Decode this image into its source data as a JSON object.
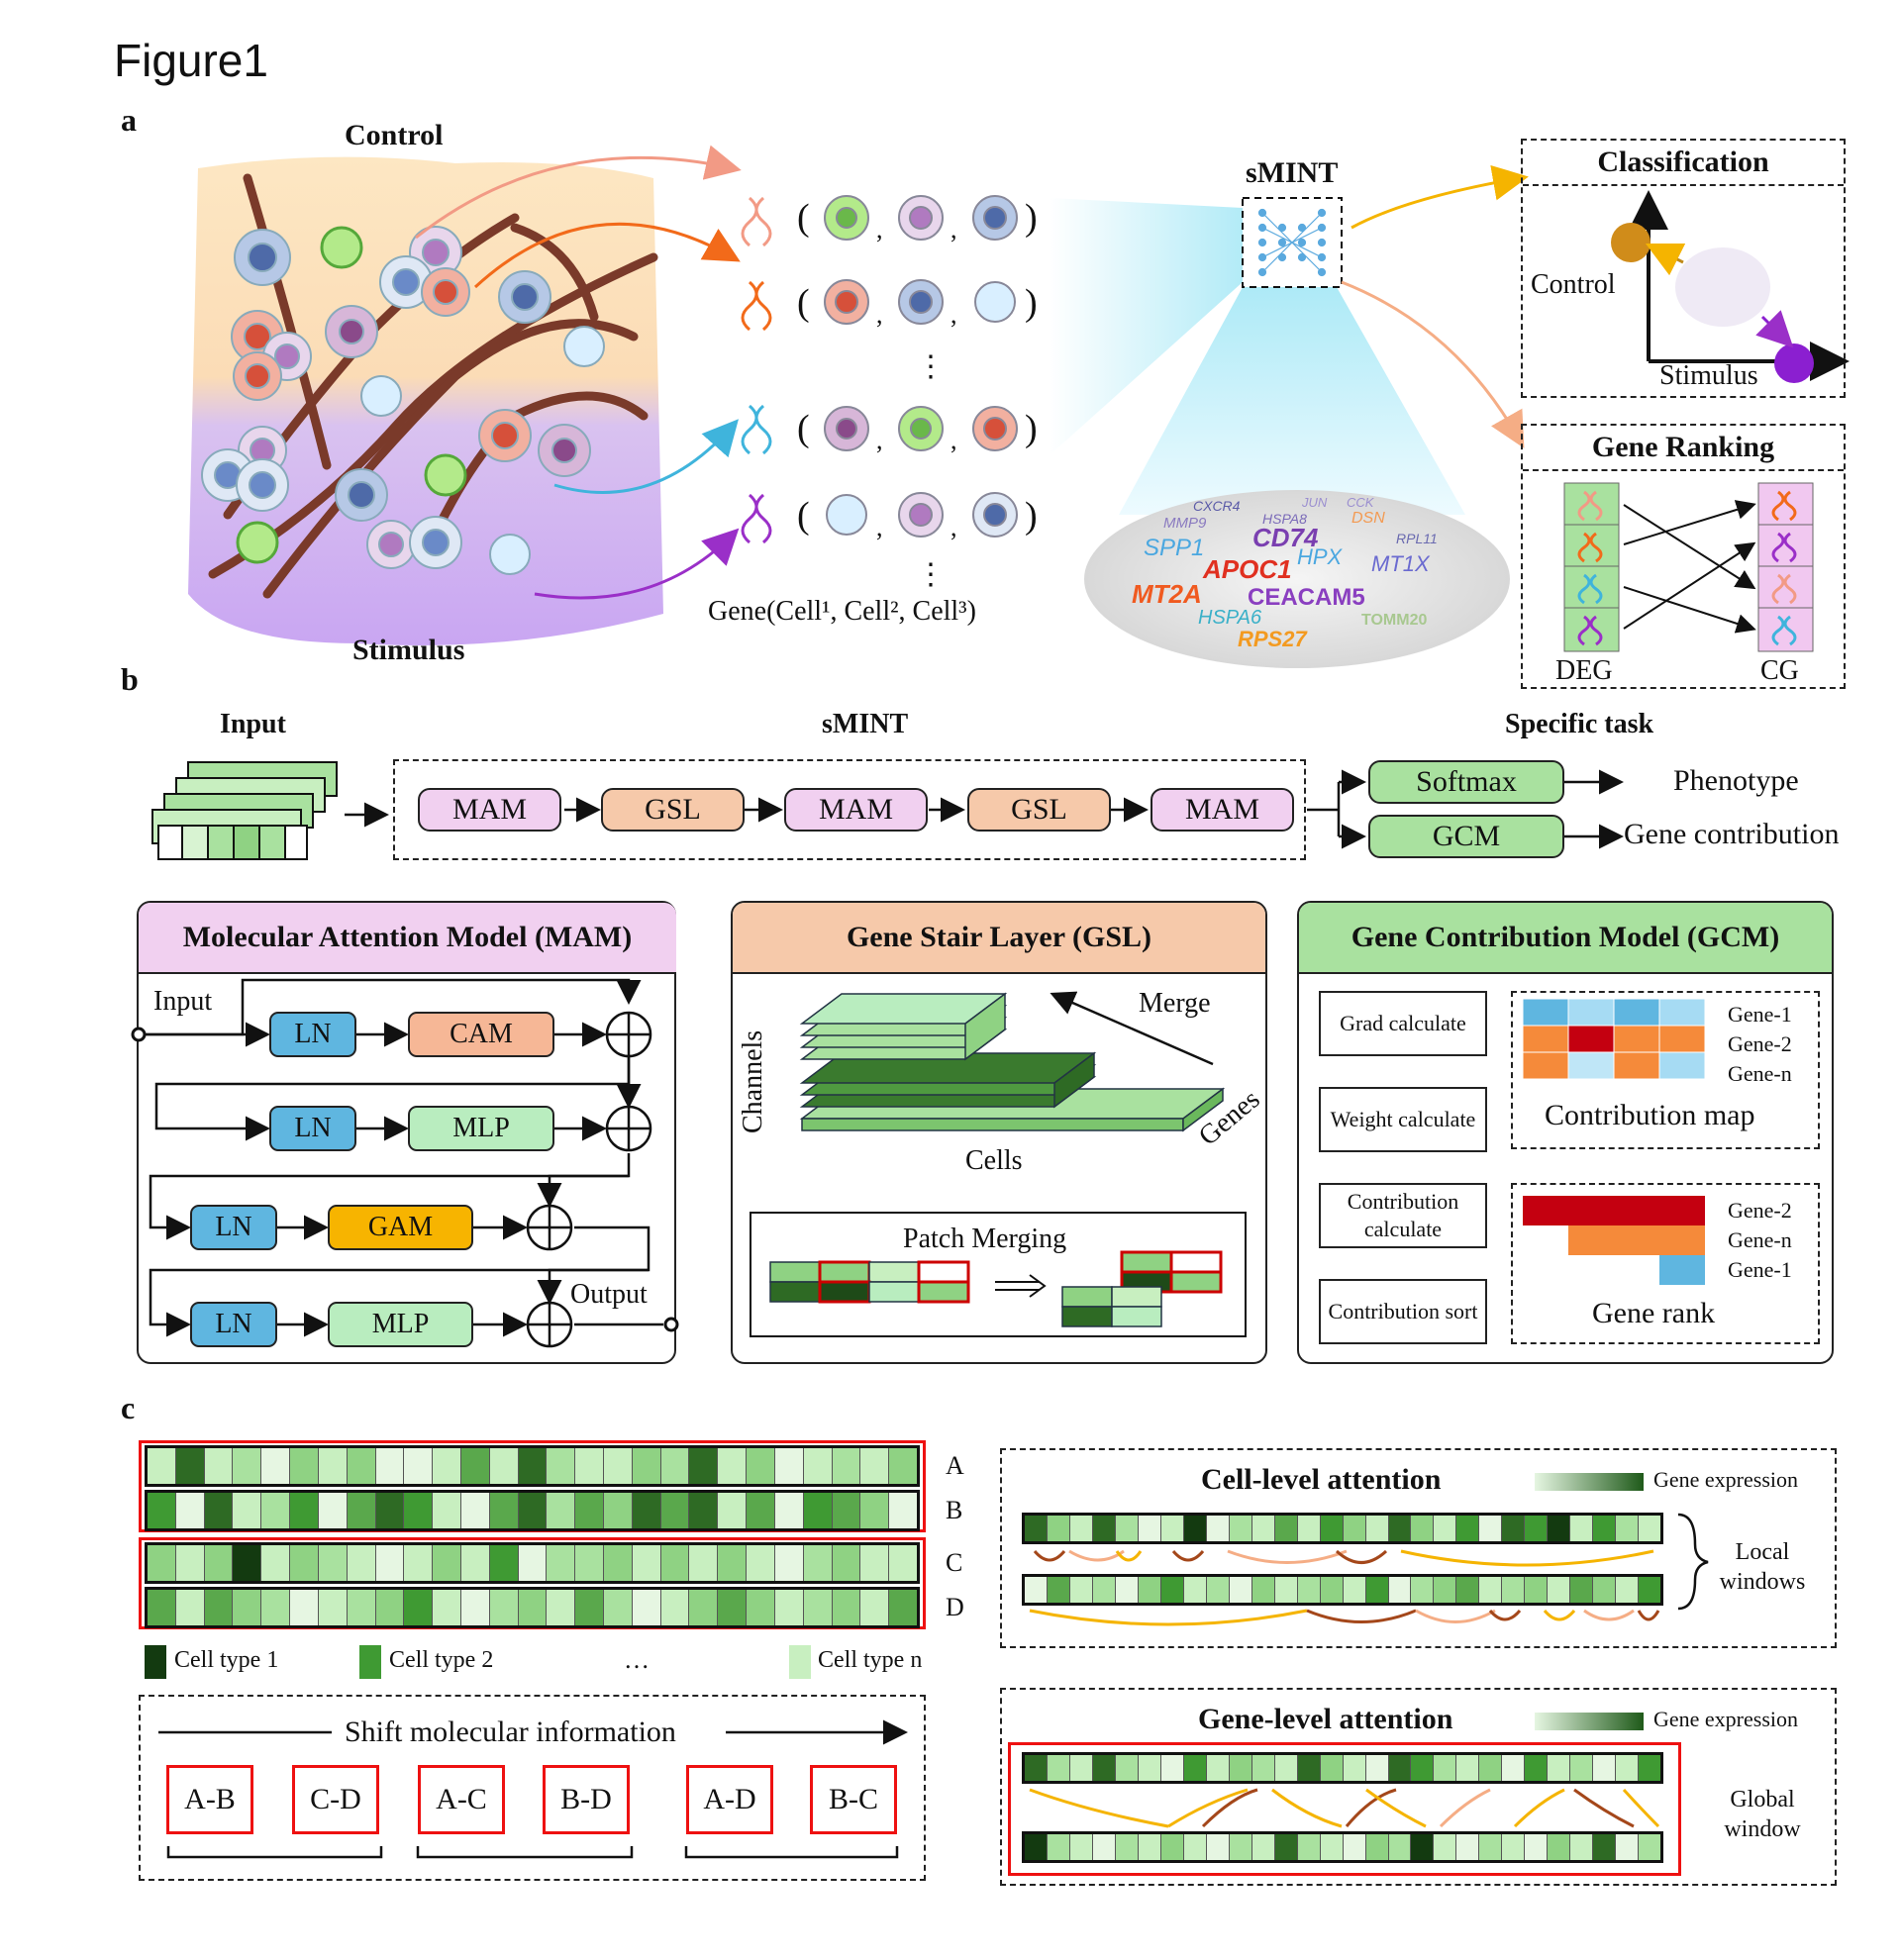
{
  "figure_title": "Figure1",
  "panel_a": {
    "letter": "a",
    "control": "Control",
    "stimulus": "Stimulus",
    "gene_label": "Gene(Cell¹,  Cell²,  Cell³)",
    "smint": "sMINT",
    "classification": {
      "title": "Classification",
      "control": "Control",
      "stimulus": "Stimulus"
    },
    "gene_ranking": {
      "title": "Gene Ranking",
      "deg": "DEG",
      "cg": "CG"
    },
    "gene_cloud": [
      {
        "text": "CXCR4",
        "color": "#5b5ba8"
      },
      {
        "text": "HSPA8",
        "color": "#7a6ab8"
      },
      {
        "text": "JUN",
        "color": "#9b8fd0"
      },
      {
        "text": "CCK",
        "color": "#9b8fd0"
      },
      {
        "text": "MMP9",
        "color": "#8a7ac0"
      },
      {
        "text": "DSN",
        "color": "#f39a52"
      },
      {
        "text": "CD74",
        "color": "#7a3fb0"
      },
      {
        "text": "SPP1",
        "color": "#4aa7e0"
      },
      {
        "text": "HPX",
        "color": "#4aa7e0"
      },
      {
        "text": "RPL11",
        "color": "#6a6ab0"
      },
      {
        "text": "APOC1",
        "color": "#e03020"
      },
      {
        "text": "MT1X",
        "color": "#6a6ad0"
      },
      {
        "text": "MT2A",
        "color": "#f05a20"
      },
      {
        "text": "CEACAM5",
        "color": "#8a3fc0"
      },
      {
        "text": "HSPA6",
        "color": "#3ab0c8"
      },
      {
        "text": "TOMM20",
        "color": "#a8c890"
      },
      {
        "text": "RPS27",
        "color": "#f39a20"
      }
    ]
  },
  "panel_b": {
    "letter": "b",
    "input": "Input",
    "smint": "sMINT",
    "specific_task": "Specific task",
    "pipeline": [
      "MAM",
      "GSL",
      "MAM",
      "GSL",
      "MAM"
    ],
    "softmax": "Softmax",
    "gcm": "GCM",
    "phenotype": "Phenotype",
    "gene_contribution": "Gene contribution",
    "mam_box": {
      "title": "Molecular Attention Model (MAM)",
      "input": "Input",
      "output": "Output",
      "ln": "LN",
      "cam": "CAM",
      "mlp": "MLP",
      "gam": "GAM"
    },
    "gsl_box": {
      "title": "Gene Stair Layer (GSL)",
      "channels": "Channels",
      "cells": "Cells",
      "genes": "Genes",
      "merge": "Merge",
      "patch_merging": "Patch Merging"
    },
    "gcm_box": {
      "title": "Gene Contribution Model (GCM)",
      "steps": [
        "Grad calculate",
        "Weight calculate",
        "Contribution calculate",
        "Contribution sort"
      ],
      "map_genes": [
        "Gene-1",
        "Gene-2",
        "Gene-n"
      ],
      "contribution_map": "Contribution map",
      "rank_genes": [
        "Gene-2",
        "Gene-n",
        "Gene-1"
      ],
      "gene_rank": "Gene rank"
    }
  },
  "panel_c": {
    "letter": "c",
    "rows": [
      "A",
      "B",
      "C",
      "D"
    ],
    "legend": {
      "type1": "Cell type 1",
      "type2": "Cell type 2",
      "ellipsis": "…",
      "typen": "Cell type n"
    },
    "shift": "Shift molecular information",
    "pairs": [
      "A-B",
      "C-D",
      "A-C",
      "B-D",
      "A-D",
      "B-C"
    ],
    "cell_level": {
      "title": "Cell-level attention",
      "gene_expression": "Gene expression",
      "windows": "Local windows"
    },
    "gene_level": {
      "title": "Gene-level attention",
      "gene_expression": "Gene expression",
      "windows": "Global window"
    }
  },
  "colors": {
    "mam": "#f1d0f0",
    "gsl": "#f6c9aa",
    "gcm": "#a9e19f",
    "ln": "#5fb6e0",
    "cam": "#f6b796",
    "mlp": "#b9edbf",
    "gam": "#f7b400",
    "highlight": "#e11111"
  }
}
